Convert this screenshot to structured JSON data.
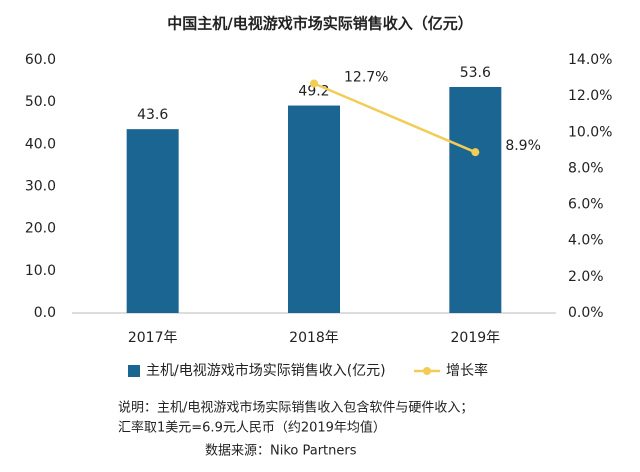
{
  "chart_data": {
    "type": "bar_line",
    "title": "中国主机/电视游戏市场实际销售收入（亿元）",
    "categories": [
      "2017年",
      "2018年",
      "2019年"
    ],
    "series": [
      {
        "name": "主机/电视游戏市场实际销售收入(亿元)",
        "type": "bar",
        "color": "#1b6592",
        "values": [
          43.6,
          49.2,
          53.6
        ]
      },
      {
        "name": "增长率",
        "type": "line",
        "axis": "y2",
        "color": "#f2cc55",
        "values": [
          null,
          12.7,
          8.9
        ],
        "value_labels": [
          null,
          "12.7%",
          "8.9%"
        ]
      }
    ],
    "ylim": [
      0,
      60
    ],
    "yticks": [
      {
        "value": 0,
        "label": "0.0"
      },
      {
        "value": 10,
        "label": "10.0"
      },
      {
        "value": 20,
        "label": "20.0"
      },
      {
        "value": 30,
        "label": "30.0"
      },
      {
        "value": 40,
        "label": "40.0"
      },
      {
        "value": 50,
        "label": "50.0"
      },
      {
        "value": 60,
        "label": "60.0"
      }
    ],
    "y2lim": [
      0,
      14
    ],
    "y2ticks": [
      {
        "value": 0,
        "label": "0.0%"
      },
      {
        "value": 2,
        "label": "2.0%"
      },
      {
        "value": 4,
        "label": "4.0%"
      },
      {
        "value": 6,
        "label": "6.0%"
      },
      {
        "value": 8,
        "label": "8.0%"
      },
      {
        "value": 10,
        "label": "10.0%"
      },
      {
        "value": 12,
        "label": "12.0%"
      },
      {
        "value": 14,
        "label": "14.0%"
      }
    ],
    "legend": "bottom",
    "annotations": [
      "说明：主机/电视游戏市场实际销售收入包含软件与硬件收入；",
      "汇率取1美元=6.9元人民币（约2019年均值）",
      "数据来源：Niko Partners"
    ]
  }
}
